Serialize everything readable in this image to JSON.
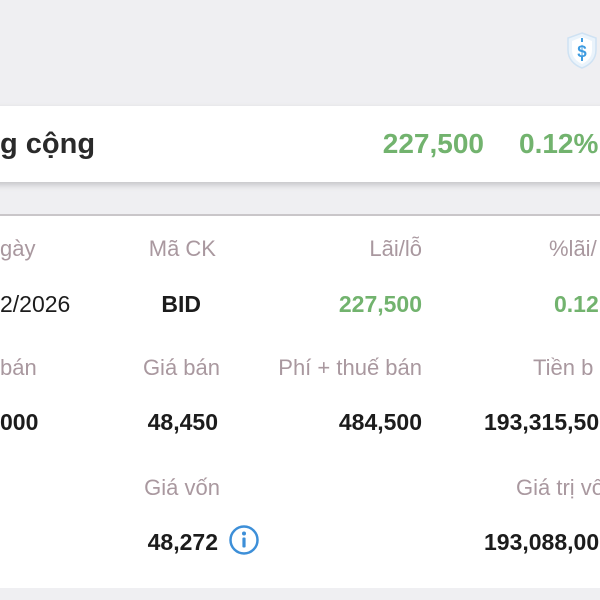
{
  "summary": {
    "label": "g cộng",
    "value": "227,500",
    "percent": "0.12%"
  },
  "detail": {
    "row1": {
      "date_label": "gày",
      "code_label": "Mã CK",
      "pnl_label": "Lãi/lỗ",
      "pct_label": "%lãi/",
      "date_value": "2/2026",
      "code_value": "BID",
      "pnl_value": "227,500",
      "pct_value": "0.12"
    },
    "row2": {
      "qty_label": "bán",
      "price_label": "Giá bán",
      "fee_label": "Phí + thuế bán",
      "proceeds_label": "Tiền b",
      "qty_value": "000",
      "price_value": "48,450",
      "fee_value": "484,500",
      "proceeds_value": "193,315,50"
    },
    "row3": {
      "cost_label": "Giá vốn",
      "capital_label": "Giá trị vố",
      "cost_value": "48,272",
      "capital_value": "193,088,00"
    }
  },
  "icons": {
    "top_right": "shield-dollar-icon",
    "cost_info": "info-icon"
  },
  "colors": {
    "positive": "#72b36e",
    "label": "#a9989f",
    "info": "#3d8fd8",
    "background": "#efeff2"
  }
}
